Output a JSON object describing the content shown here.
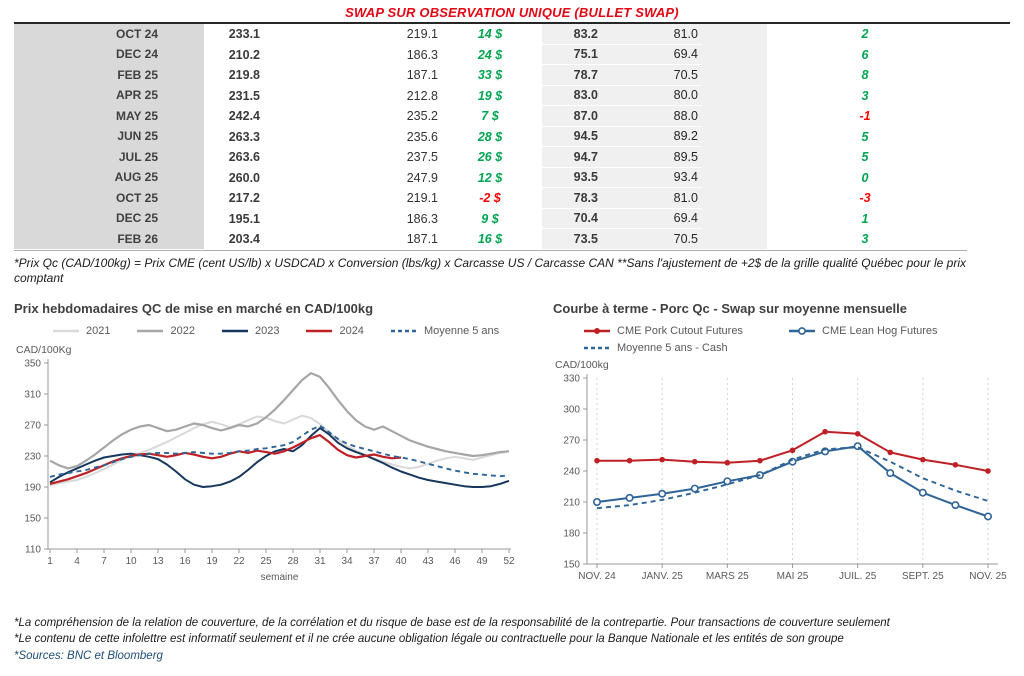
{
  "page": {
    "title": "SWAP SUR OBSERVATION UNIQUE (BULLET SWAP)",
    "table_footnote": "*Prix Qc (CAD/100kg) = Prix CME (cent US/lb) x USDCAD x Conversion (lbs/kg) x Carcasse US / Carcasse CAN **Sans l'ajustement de +2$ de la grille qualité Québec pour le prix comptant",
    "footnotes": [
      "*La compréhension de la relation de couverture, de la corrélation et du risque de base est de la responsabilité de la contrepartie. Pour transactions de couverture seulement",
      "*Le contenu de cette infolettre est informatif seulement et il ne crée aucune obligation légale ou contractuelle pour la Banque Nationale et les entités de son groupe",
      "*Sources: BNC et Bloomberg"
    ]
  },
  "colors": {
    "title": "#e30613",
    "positive": "#00a550",
    "negative": "#ff0000",
    "sources": "#1f4e79",
    "month_bg": "#d9d9d9",
    "band_bg": "#f0f0f0"
  },
  "swap_table": {
    "rows": [
      {
        "month": "OCT 24",
        "qc_swap": "233.1",
        "qc_cash": "219.1",
        "qc_diff": "14 $",
        "us_swap": "83.2",
        "us_cash": "81.0",
        "us_diff": "2"
      },
      {
        "month": "DEC 24",
        "qc_swap": "210.2",
        "qc_cash": "186.3",
        "qc_diff": "24 $",
        "us_swap": "75.1",
        "us_cash": "69.4",
        "us_diff": "6"
      },
      {
        "month": "FEB 25",
        "qc_swap": "219.8",
        "qc_cash": "187.1",
        "qc_diff": "33 $",
        "us_swap": "78.7",
        "us_cash": "70.5",
        "us_diff": "8"
      },
      {
        "month": "APR 25",
        "qc_swap": "231.5",
        "qc_cash": "212.8",
        "qc_diff": "19 $",
        "us_swap": "83.0",
        "us_cash": "80.0",
        "us_diff": "3"
      },
      {
        "month": "MAY 25",
        "qc_swap": "242.4",
        "qc_cash": "235.2",
        "qc_diff": "7 $",
        "us_swap": "87.0",
        "us_cash": "88.0",
        "us_diff": "-1"
      },
      {
        "month": "JUN 25",
        "qc_swap": "263.3",
        "qc_cash": "235.6",
        "qc_diff": "28 $",
        "us_swap": "94.5",
        "us_cash": "89.2",
        "us_diff": "5"
      },
      {
        "month": "JUL 25",
        "qc_swap": "263.6",
        "qc_cash": "237.5",
        "qc_diff": "26 $",
        "us_swap": "94.7",
        "us_cash": "89.5",
        "us_diff": "5"
      },
      {
        "month": "AUG 25",
        "qc_swap": "260.0",
        "qc_cash": "247.9",
        "qc_diff": "12 $",
        "us_swap": "93.5",
        "us_cash": "93.4",
        "us_diff": "0"
      },
      {
        "month": "OCT 25",
        "qc_swap": "217.2",
        "qc_cash": "219.1",
        "qc_diff": "-2 $",
        "us_swap": "78.3",
        "us_cash": "81.0",
        "us_diff": "-3"
      },
      {
        "month": "DEC 25",
        "qc_swap": "195.1",
        "qc_cash": "186.3",
        "qc_diff": "9 $",
        "us_swap": "70.4",
        "us_cash": "69.4",
        "us_diff": "1"
      },
      {
        "month": "FEB 26",
        "qc_swap": "203.4",
        "qc_cash": "187.1",
        "qc_diff": "16 $",
        "us_swap": "73.5",
        "us_cash": "70.5",
        "us_diff": "3"
      }
    ]
  },
  "chart_data": [
    {
      "type": "line",
      "title": "Prix hebdomadaires QC de mise en marché en CAD/100kg",
      "ylabel": "CAD/100Kg",
      "xlabel": "semaine",
      "ylim": [
        110,
        350
      ],
      "y_ticks": [
        110,
        150,
        190,
        230,
        270,
        310,
        350
      ],
      "n": 52,
      "x_tick_positions": [
        0,
        3,
        6,
        9,
        12,
        15,
        18,
        21,
        24,
        27,
        30,
        33,
        36,
        39,
        42,
        45,
        48,
        51
      ],
      "x_tick_labels": [
        "1",
        "4",
        "7",
        "10",
        "13",
        "16",
        "19",
        "22",
        "25",
        "28",
        "31",
        "34",
        "37",
        "40",
        "43",
        "46",
        "49",
        "52"
      ],
      "grid": false,
      "legend_position": "top",
      "series": [
        {
          "name": "2021",
          "color": "#d9d9d9",
          "width": 2,
          "dash": null,
          "marker": null,
          "values": [
            192,
            195,
            197,
            199,
            203,
            208,
            213,
            219,
            225,
            230,
            234,
            238,
            243,
            248,
            254,
            260,
            266,
            271,
            274,
            271,
            267,
            271,
            276,
            281,
            279,
            275,
            272,
            277,
            282,
            279,
            271,
            261,
            251,
            243,
            237,
            231,
            227,
            223,
            219,
            216,
            214,
            216,
            220,
            224,
            227,
            229,
            227,
            225,
            228,
            231,
            234,
            236
          ]
        },
        {
          "name": "2022",
          "color": "#a6a6a6",
          "width": 2.2,
          "dash": null,
          "marker": null,
          "values": [
            224,
            218,
            214,
            217,
            224,
            232,
            241,
            250,
            258,
            264,
            268,
            270,
            266,
            262,
            264,
            268,
            272,
            270,
            266,
            263,
            266,
            270,
            268,
            272,
            280,
            290,
            302,
            315,
            328,
            337,
            332,
            318,
            302,
            288,
            276,
            268,
            264,
            268,
            262,
            256,
            250,
            246,
            242,
            239,
            236,
            234,
            232,
            230,
            231,
            233,
            235,
            236
          ]
        },
        {
          "name": "2023",
          "color": "#17375e",
          "width": 2,
          "dash": null,
          "marker": null,
          "values": [
            196,
            203,
            209,
            214,
            219,
            224,
            228,
            230,
            232,
            233,
            231,
            229,
            226,
            219,
            210,
            200,
            193,
            190,
            191,
            193,
            197,
            203,
            212,
            222,
            230,
            236,
            239,
            236,
            244,
            256,
            266,
            258,
            247,
            240,
            235,
            231,
            226,
            221,
            215,
            210,
            206,
            202,
            199,
            197,
            195,
            193,
            191,
            190,
            190,
            191,
            194,
            198
          ]
        },
        {
          "name": "2024",
          "color": "#bf2026",
          "width": 2.2,
          "dash": null,
          "marker": null,
          "values": [
            194,
            197,
            200,
            204,
            208,
            213,
            218,
            223,
            227,
            230,
            232,
            233,
            231,
            229,
            231,
            234,
            232,
            229,
            227,
            229,
            233,
            236,
            234,
            237,
            235,
            233,
            236,
            241,
            247,
            253,
            257,
            248,
            238,
            231,
            228,
            230,
            232,
            229,
            227,
            228,
            null,
            null,
            null,
            null,
            null,
            null,
            null,
            null,
            null,
            null,
            null,
            null
          ]
        },
        {
          "name": "Moyenne 5 ans",
          "color": "#2e6496",
          "width": 1.9,
          "dash": "5,4",
          "marker": null,
          "values": [
            203,
            206,
            208,
            210,
            212,
            215,
            218,
            222,
            226,
            229,
            231,
            233,
            234,
            234,
            233,
            234,
            235,
            234,
            233,
            233,
            234,
            236,
            237,
            239,
            240,
            242,
            244,
            248,
            256,
            264,
            269,
            261,
            252,
            246,
            242,
            239,
            236,
            233,
            230,
            228,
            226,
            223,
            220,
            217,
            214,
            211,
            209,
            207,
            206,
            205,
            204,
            205
          ]
        }
      ]
    },
    {
      "type": "line",
      "title": "Courbe à terme - Porc Qc - Swap sur moyenne mensuelle",
      "ylabel": "CAD/100kg",
      "xlabel": "",
      "ylim": [
        150,
        330
      ],
      "y_ticks": [
        150,
        180,
        210,
        240,
        270,
        300,
        330
      ],
      "n": 13,
      "x_tick_positions": [
        0,
        2,
        4,
        6,
        8,
        10,
        12
      ],
      "x_tick_labels": [
        "NOV. 24",
        "JANV. 25",
        "MARS 25",
        "MAI 25",
        "JUIL. 25",
        "SEPT. 25",
        "NOV. 25"
      ],
      "grid": "vertical-dashed",
      "legend_position": "top",
      "series": [
        {
          "name": "CME Pork Cutout Futures",
          "color": "#bf2026",
          "width": 2,
          "dash": null,
          "marker": "dot",
          "values": [
            250,
            250,
            251,
            249,
            248,
            250,
            260,
            278,
            276,
            258,
            251,
            246,
            240
          ]
        },
        {
          "name": "CME Lean Hog Futures",
          "color": "#2e6496",
          "width": 2,
          "dash": null,
          "marker": "circle",
          "values": [
            210,
            214,
            218,
            223,
            230,
            236,
            249,
            259,
            264,
            238,
            219,
            207,
            196
          ]
        },
        {
          "name": "Moyenne 5 ans - Cash",
          "color": "#2e6496",
          "width": 1.9,
          "dash": "5,4",
          "marker": null,
          "values": [
            204,
            207,
            212,
            219,
            227,
            236,
            251,
            261,
            263,
            249,
            233,
            221,
            211
          ]
        }
      ]
    }
  ]
}
